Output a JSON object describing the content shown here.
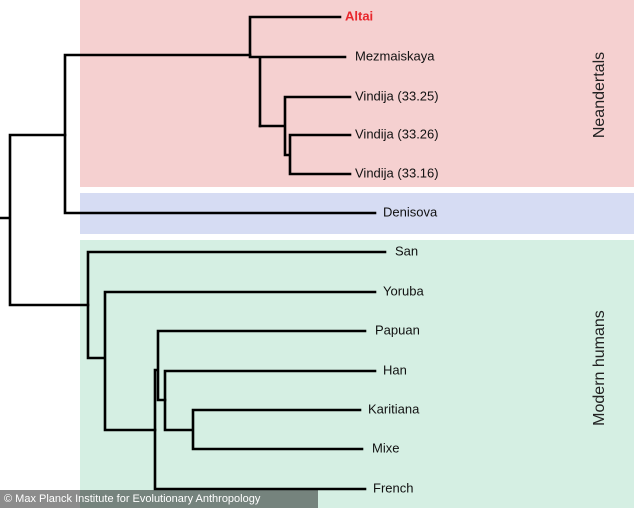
{
  "groups": [
    "Neandertals",
    "Modern humans"
  ],
  "leaves": [
    "Altai",
    "Mezmaiskaya",
    "Vindija (33.25)",
    "Vindija (33.26)",
    "Vindija (33.16)",
    "Denisova",
    "San",
    "Yoruba",
    "Papuan",
    "Han",
    "Karitiana",
    "Mixe",
    "French"
  ],
  "credit": "© Max Planck Institute for Evolutionary Anthropology"
}
